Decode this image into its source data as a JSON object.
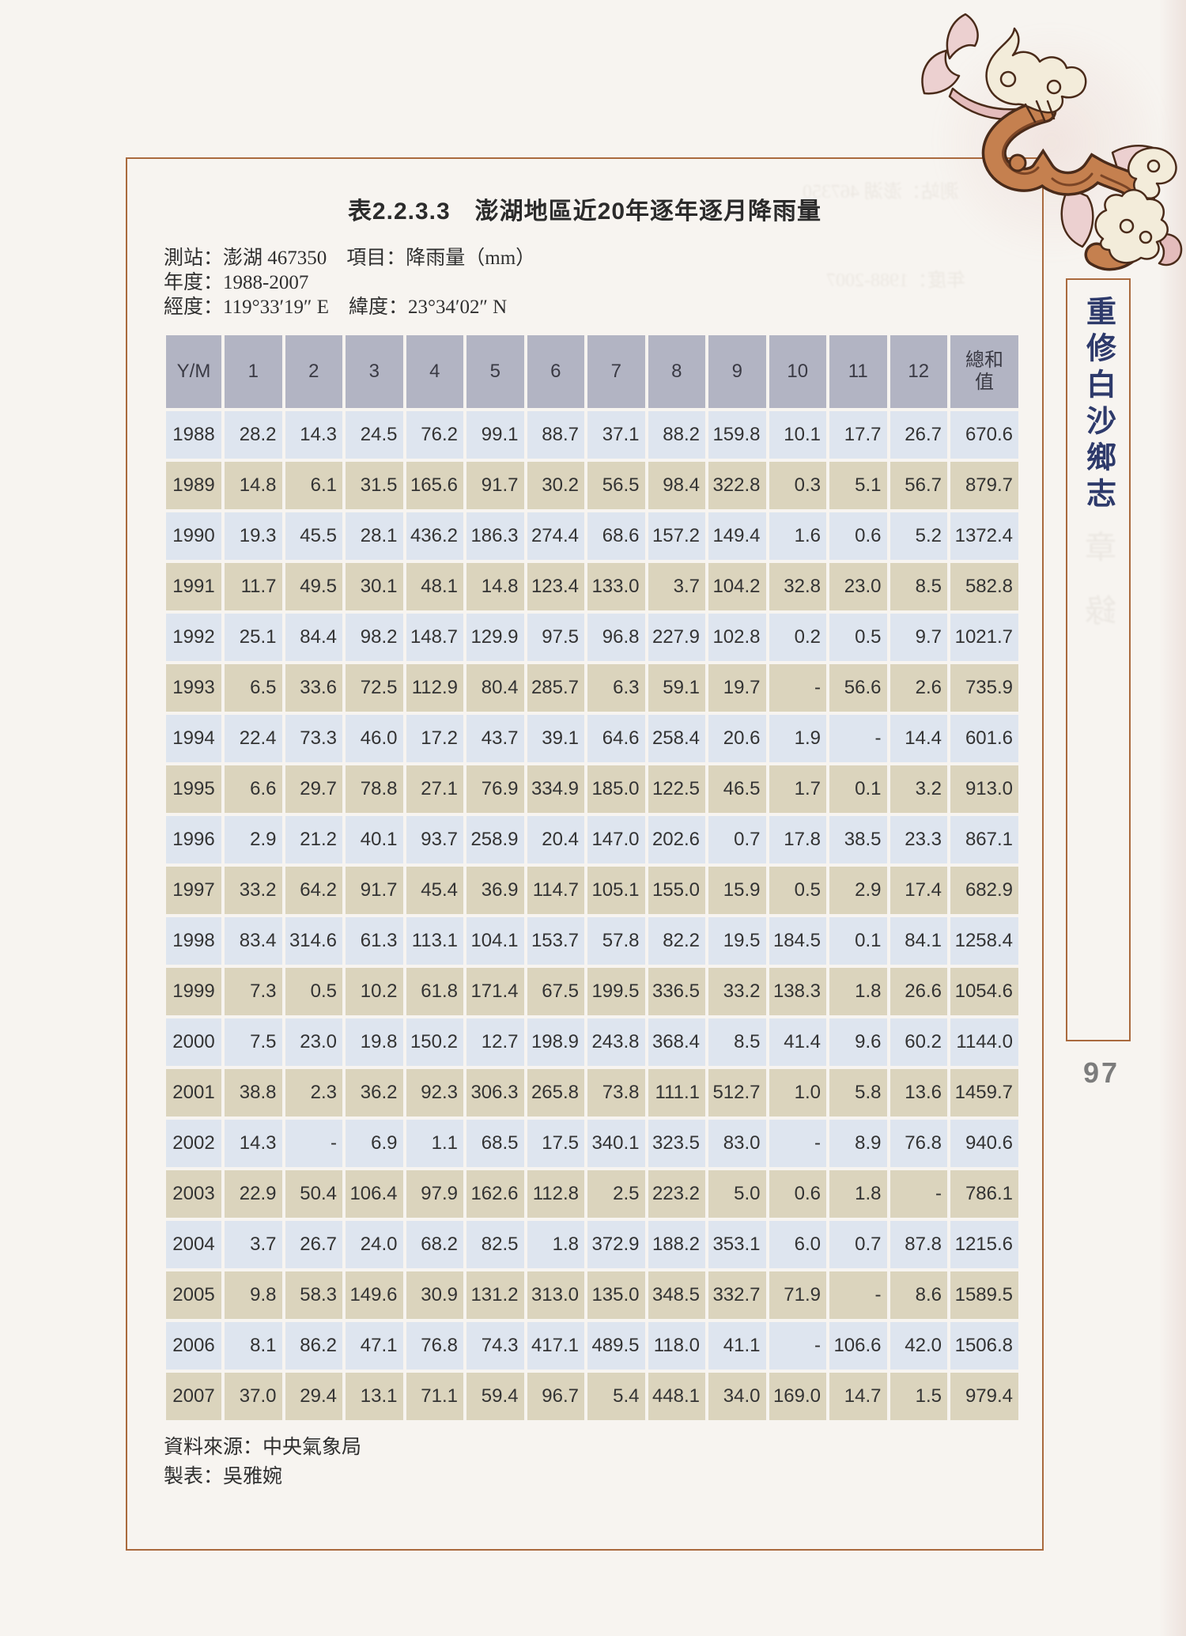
{
  "document": {
    "caption": "表2.2.3.3　澎湖地區近20年逐年逐月降雨量",
    "meta_lines": [
      "測站：澎湖 467350　項目：降雨量（mm）",
      "年度：1988-2007",
      "經度：119°33′19″ E　緯度：23°34′02″ N"
    ],
    "source_line": "資料來源：中央氣象局",
    "author_line": "製表：吳雅婉"
  },
  "sidebar": {
    "book_title": "重修白沙鄉志",
    "page_number": "97"
  },
  "artifacts": {
    "ghost_line_1": "測站：澎湖 467350",
    "ghost_line_2": "年度：1988-2007",
    "ghost_glyph_1": "章",
    "ghost_glyph_2": "錄"
  },
  "chart_data": {
    "type": "table",
    "title": "表2.2.3.3 澎湖地區近20年逐年逐月降雨量",
    "unit": "mm",
    "missing_value_symbol": "-",
    "columns": [
      "Y/M",
      "1",
      "2",
      "3",
      "4",
      "5",
      "6",
      "7",
      "8",
      "9",
      "10",
      "11",
      "12",
      "總和值"
    ],
    "rows": [
      [
        "1988",
        "28.2",
        "14.3",
        "24.5",
        "76.2",
        "99.1",
        "88.7",
        "37.1",
        "88.2",
        "159.8",
        "10.1",
        "17.7",
        "26.7",
        "670.6"
      ],
      [
        "1989",
        "14.8",
        "6.1",
        "31.5",
        "165.6",
        "91.7",
        "30.2",
        "56.5",
        "98.4",
        "322.8",
        "0.3",
        "5.1",
        "56.7",
        "879.7"
      ],
      [
        "1990",
        "19.3",
        "45.5",
        "28.1",
        "436.2",
        "186.3",
        "274.4",
        "68.6",
        "157.2",
        "149.4",
        "1.6",
        "0.6",
        "5.2",
        "1372.4"
      ],
      [
        "1991",
        "11.7",
        "49.5",
        "30.1",
        "48.1",
        "14.8",
        "123.4",
        "133.0",
        "3.7",
        "104.2",
        "32.8",
        "23.0",
        "8.5",
        "582.8"
      ],
      [
        "1992",
        "25.1",
        "84.4",
        "98.2",
        "148.7",
        "129.9",
        "97.5",
        "96.8",
        "227.9",
        "102.8",
        "0.2",
        "0.5",
        "9.7",
        "1021.7"
      ],
      [
        "1993",
        "6.5",
        "33.6",
        "72.5",
        "112.9",
        "80.4",
        "285.7",
        "6.3",
        "59.1",
        "19.7",
        "-",
        "56.6",
        "2.6",
        "735.9"
      ],
      [
        "1994",
        "22.4",
        "73.3",
        "46.0",
        "17.2",
        "43.7",
        "39.1",
        "64.6",
        "258.4",
        "20.6",
        "1.9",
        "-",
        "14.4",
        "601.6"
      ],
      [
        "1995",
        "6.6",
        "29.7",
        "78.8",
        "27.1",
        "76.9",
        "334.9",
        "185.0",
        "122.5",
        "46.5",
        "1.7",
        "0.1",
        "3.2",
        "913.0"
      ],
      [
        "1996",
        "2.9",
        "21.2",
        "40.1",
        "93.7",
        "258.9",
        "20.4",
        "147.0",
        "202.6",
        "0.7",
        "17.8",
        "38.5",
        "23.3",
        "867.1"
      ],
      [
        "1997",
        "33.2",
        "64.2",
        "91.7",
        "45.4",
        "36.9",
        "114.7",
        "105.1",
        "155.0",
        "15.9",
        "0.5",
        "2.9",
        "17.4",
        "682.9"
      ],
      [
        "1998",
        "83.4",
        "314.6",
        "61.3",
        "113.1",
        "104.1",
        "153.7",
        "57.8",
        "82.2",
        "19.5",
        "184.5",
        "0.1",
        "84.1",
        "1258.4"
      ],
      [
        "1999",
        "7.3",
        "0.5",
        "10.2",
        "61.8",
        "171.4",
        "67.5",
        "199.5",
        "336.5",
        "33.2",
        "138.3",
        "1.8",
        "26.6",
        "1054.6"
      ],
      [
        "2000",
        "7.5",
        "23.0",
        "19.8",
        "150.2",
        "12.7",
        "198.9",
        "243.8",
        "368.4",
        "8.5",
        "41.4",
        "9.6",
        "60.2",
        "1144.0"
      ],
      [
        "2001",
        "38.8",
        "2.3",
        "36.2",
        "92.3",
        "306.3",
        "265.8",
        "73.8",
        "111.1",
        "512.7",
        "1.0",
        "5.8",
        "13.6",
        "1459.7"
      ],
      [
        "2002",
        "14.3",
        "-",
        "6.9",
        "1.1",
        "68.5",
        "17.5",
        "340.1",
        "323.5",
        "83.0",
        "-",
        "8.9",
        "76.8",
        "940.6"
      ],
      [
        "2003",
        "22.9",
        "50.4",
        "106.4",
        "97.9",
        "162.6",
        "112.8",
        "2.5",
        "223.2",
        "5.0",
        "0.6",
        "1.8",
        "-",
        "786.1"
      ],
      [
        "2004",
        "3.7",
        "26.7",
        "24.0",
        "68.2",
        "82.5",
        "1.8",
        "372.9",
        "188.2",
        "353.1",
        "6.0",
        "0.7",
        "87.8",
        "1215.6"
      ],
      [
        "2005",
        "9.8",
        "58.3",
        "149.6",
        "30.9",
        "131.2",
        "313.0",
        "135.0",
        "348.5",
        "332.7",
        "71.9",
        "-",
        "8.6",
        "1589.5"
      ],
      [
        "2006",
        "8.1",
        "86.2",
        "47.1",
        "76.8",
        "74.3",
        "417.1",
        "489.5",
        "118.0",
        "41.1",
        "-",
        "106.6",
        "42.0",
        "1506.8"
      ],
      [
        "2007",
        "37.0",
        "29.4",
        "13.1",
        "71.1",
        "59.4",
        "96.7",
        "5.4",
        "448.1",
        "34.0",
        "169.0",
        "14.7",
        "1.5",
        "979.4"
      ]
    ]
  },
  "colors": {
    "page_background": "#f7f4f0",
    "box_border": "#aa6a3e",
    "header_bg": "#b2b4c3",
    "row_blue": "#dee5ef",
    "row_tan": "#dbd4bd",
    "sidebar_text": "#2e3a6b",
    "page_number": "#7c7c7c",
    "ornament_brown": "#c5804f",
    "ornament_outline": "#4a2b1a",
    "ornament_cream": "#f3ecda",
    "ornament_pink": "#ecd0d0"
  }
}
